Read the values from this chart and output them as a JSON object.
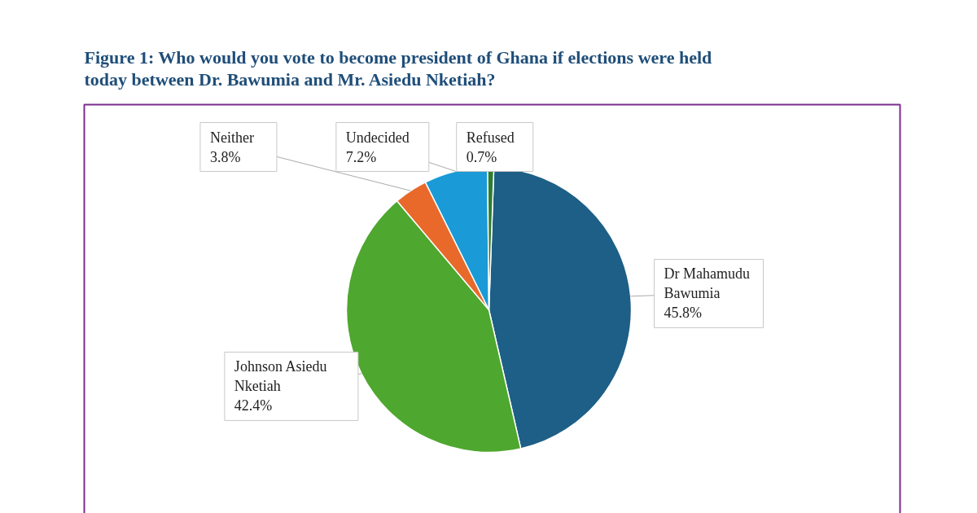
{
  "chart_data": {
    "type": "pie",
    "title": "Figure 1: Who would you vote to become president of Ghana if elections were held today between Dr. Bawumia and Mr. Asiedu Nketiah?",
    "categories": [
      "Dr Mahamudu Bawumia",
      "Johnson Asiedu Nketiah",
      "Neither",
      "Undecided",
      "Refused"
    ],
    "values": [
      45.8,
      42.4,
      3.8,
      7.2,
      0.7
    ],
    "value_labels": [
      "45.8%",
      "42.4%",
      "3.8%",
      "7.2%",
      "0.7%"
    ],
    "colors": [
      "#1d5f86",
      "#4ea72e",
      "#e8692a",
      "#1a9ad6",
      "#2e7d32"
    ]
  }
}
